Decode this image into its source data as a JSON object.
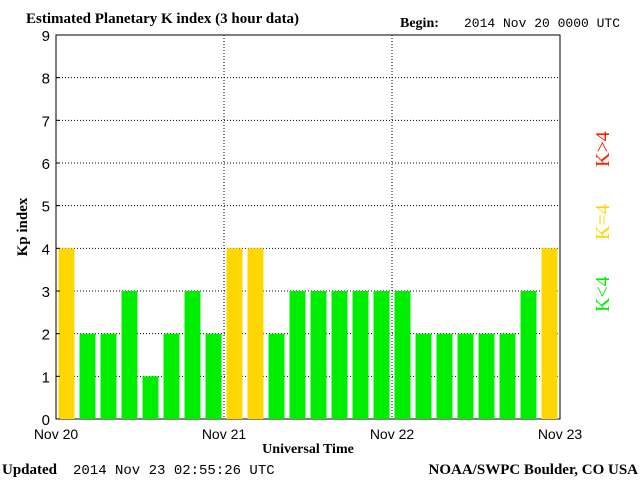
{
  "header": {
    "title": "Estimated Planetary K index (3 hour data)",
    "begin_label": "Begin:",
    "begin_value": "2014 Nov 20 0000 UTC"
  },
  "footer": {
    "updated_label": "Updated",
    "updated_value": "2014 Nov 23 02:55:26 UTC",
    "source": "NOAA/SWPC Boulder, CO USA"
  },
  "legend": {
    "below": {
      "text": "K<4",
      "color": "#00ee00"
    },
    "equal": {
      "text": "K=4",
      "color": "#ffd700"
    },
    "above": {
      "text": "K>4",
      "color": "#ff2000"
    }
  },
  "chart_data": {
    "type": "bar",
    "title": "Estimated Planetary K index (3 hour data)",
    "xlabel": "Universal Time",
    "ylabel": "Kp index",
    "ylim": [
      0,
      9
    ],
    "y_ticks": [
      0,
      1,
      2,
      3,
      4,
      5,
      6,
      7,
      8,
      9
    ],
    "x_ticks": [
      "Nov 20",
      "Nov 21",
      "Nov 22",
      "Nov 23"
    ],
    "interval_hours": 3,
    "grid": "dotted",
    "legend_position": "right",
    "values": [
      4,
      2,
      2,
      3,
      1,
      2,
      3,
      2,
      4,
      4,
      2,
      3,
      3,
      3,
      3,
      3,
      3,
      2,
      2,
      2,
      2,
      2,
      3,
      4
    ],
    "colors": {
      "below": "#00ee00",
      "equal": "#ffd700",
      "above": "#ff2000"
    }
  }
}
